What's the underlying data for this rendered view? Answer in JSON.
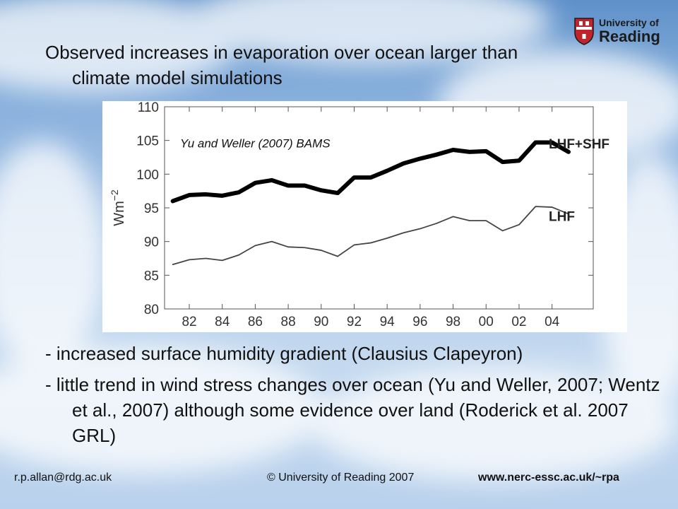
{
  "slide": {
    "title": "Observed increases in evaporation over ocean larger than climate model simulations",
    "bullets": [
      "- increased surface humidity gradient (Clausius Clapeyron)",
      "- little trend in wind stress changes over ocean (Yu and Weller, 2007; Wentz et al., 2007) although some evidence over land (Roderick et al. 2007 GRL)"
    ]
  },
  "logo": {
    "line1": "University of",
    "line2": "Reading",
    "icon": "university-crest-icon"
  },
  "footer": {
    "email": "r.p.allan@rdg.ac.uk",
    "copyright": "© University of Reading 2007",
    "url": "www.nerc-essc.ac.uk/~rpa"
  },
  "chart_data": {
    "type": "line",
    "annotation": "Yu and Weller (2007) BAMS",
    "ylabel": "Wm",
    "ylabel_superscript": "−2",
    "ylim": [
      80,
      110
    ],
    "yticks": [
      "80",
      "85",
      "90",
      "95",
      "100",
      "105",
      "110"
    ],
    "xlim": [
      1980.5,
      2006.5
    ],
    "xtick_values": [
      1982,
      1984,
      1986,
      1988,
      1990,
      1992,
      1994,
      1996,
      1998,
      2000,
      2002,
      2004
    ],
    "xticks": [
      "82",
      "84",
      "86",
      "88",
      "90",
      "92",
      "94",
      "96",
      "98",
      "00",
      "02",
      "04"
    ],
    "x": [
      1981,
      1982,
      1983,
      1984,
      1985,
      1986,
      1987,
      1988,
      1989,
      1990,
      1991,
      1992,
      1993,
      1994,
      1995,
      1996,
      1997,
      1998,
      1999,
      2000,
      2001,
      2002,
      2003,
      2004,
      2005
    ],
    "series": [
      {
        "name": "LHF+SHF",
        "color": "#000000",
        "values": [
          96.0,
          96.9,
          97.0,
          96.8,
          97.3,
          98.7,
          99.1,
          98.3,
          98.3,
          97.6,
          97.2,
          99.5,
          99.5,
          100.5,
          101.6,
          102.3,
          102.9,
          103.6,
          103.3,
          103.4,
          101.8,
          102.0,
          104.7,
          104.7,
          103.3
        ]
      },
      {
        "name": "LHF",
        "color": "#444444",
        "values": [
          86.6,
          87.3,
          87.5,
          87.2,
          88.0,
          89.4,
          90.0,
          89.2,
          89.1,
          88.7,
          87.8,
          89.5,
          89.8,
          90.5,
          91.3,
          91.9,
          92.7,
          93.7,
          93.1,
          93.1,
          91.6,
          92.5,
          95.2,
          95.1,
          94.1
        ]
      }
    ]
  },
  "colors": {
    "text": "#111111",
    "sky_top": "#5f91c9",
    "sky_bottom": "#c4d9ef",
    "crest_red": "#c0232c"
  }
}
